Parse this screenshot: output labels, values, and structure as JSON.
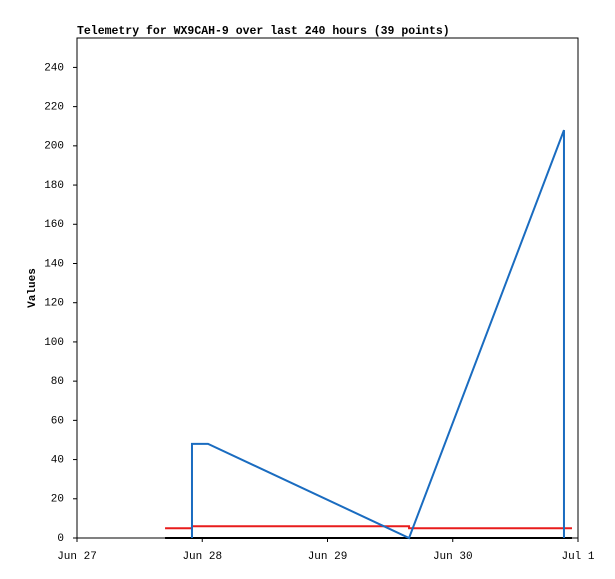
{
  "chart_data": {
    "type": "line",
    "title": "Telemetry for WX9CAH-9 over last 240 hours (39 points)",
    "y_label": "Values",
    "xlim": [
      27,
      31
    ],
    "xticks": [
      {
        "value": 27,
        "label": "Jun 27"
      },
      {
        "value": 28,
        "label": "Jun 28"
      },
      {
        "value": 29,
        "label": "Jun 29"
      },
      {
        "value": 30,
        "label": "Jun 30"
      },
      {
        "value": 31,
        "label": "Jul 1"
      }
    ],
    "ylim": [
      0,
      255
    ],
    "yticks": [
      0,
      20,
      40,
      60,
      80,
      100,
      120,
      140,
      160,
      180,
      200,
      220,
      240
    ],
    "series": [
      {
        "color": "#000000",
        "x": [
          27.703,
          30.952
        ],
        "values": [
          0,
          0
        ]
      },
      {
        "color": "#e81c1c",
        "x": [
          27.703,
          27.918,
          27.918,
          29.651,
          29.651,
          30.952
        ],
        "values": [
          5,
          5,
          6,
          6,
          5,
          5
        ]
      },
      {
        "color": "#1a6cc0",
        "x": [
          27.918,
          27.918,
          28.046,
          29.651,
          30.888,
          30.888
        ],
        "values": [
          0,
          48,
          48,
          0,
          208,
          0
        ]
      }
    ]
  }
}
